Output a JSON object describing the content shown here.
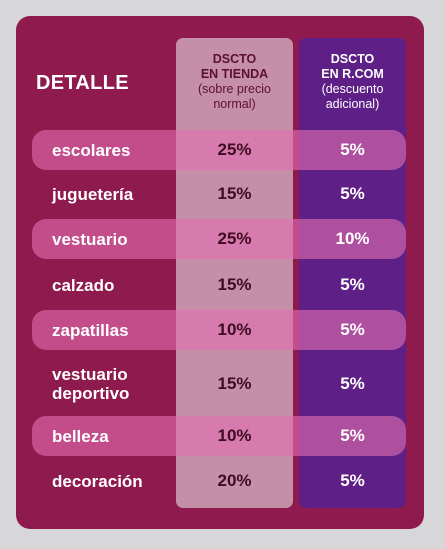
{
  "table": {
    "header_detail": "DETALLE",
    "col_store": {
      "title_line1": "DSCTO",
      "title_line2": "EN TIENDA",
      "sub_line1": "(sobre precio",
      "sub_line2": "normal)"
    },
    "col_online": {
      "title_line1": "DSCTO",
      "title_line2": "EN R.COM",
      "sub_line1": "(descuento",
      "sub_line2": "adicional)"
    },
    "rows": [
      {
        "label_line1": "escolares",
        "label_line2": "",
        "store": "25%",
        "online": "5%"
      },
      {
        "label_line1": "juguetería",
        "label_line2": "",
        "store": "15%",
        "online": "5%"
      },
      {
        "label_line1": "vestuario",
        "label_line2": "",
        "store": "25%",
        "online": "10%"
      },
      {
        "label_line1": "calzado",
        "label_line2": "",
        "store": "15%",
        "online": "5%"
      },
      {
        "label_line1": "zapatillas",
        "label_line2": "",
        "store": "10%",
        "online": "5%"
      },
      {
        "label_line1": "vestuario",
        "label_line2": "deportivo",
        "store": "15%",
        "online": "5%"
      },
      {
        "label_line1": "belleza",
        "label_line2": "",
        "store": "10%",
        "online": "5%"
      },
      {
        "label_line1": "decoración",
        "label_line2": "",
        "store": "20%",
        "online": "5%"
      }
    ]
  },
  "colors": {
    "card_bg": "#8f1a4d",
    "store_column": "#c68fa8",
    "online_column": "#5e1f86",
    "row_highlight": "#e26eb0"
  }
}
